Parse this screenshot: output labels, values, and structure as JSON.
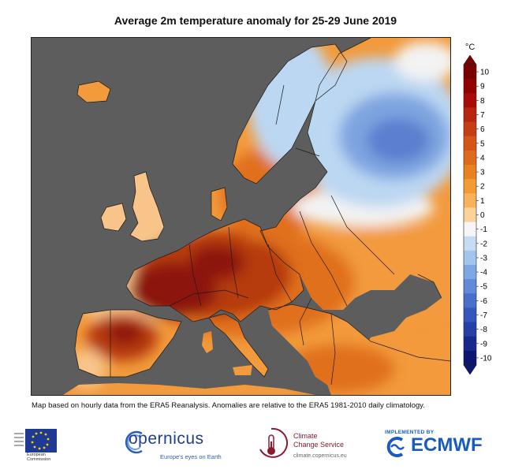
{
  "title": "Average 2m temperature anomaly for 25-29 June 2019",
  "caption": "Map based on hourly data from the ERA5 Reanalysis. Anomalies are relative to the ERA5 1981-2010 daily climatology.",
  "colorbar": {
    "unit": "°C",
    "ticks": [
      "10",
      "9",
      "8",
      "7",
      "6",
      "5",
      "4",
      "3",
      "2",
      "1",
      "0",
      "-1",
      "-2",
      "-3",
      "-4",
      "-5",
      "-6",
      "-7",
      "-8",
      "-9",
      "-10"
    ],
    "colors": [
      "#7a0000",
      "#930000",
      "#a80b08",
      "#b9260f",
      "#c63d14",
      "#d55518",
      "#e06a1c",
      "#ea8121",
      "#f39a32",
      "#f7b25a",
      "#fbd398",
      "#f6f6f6",
      "#c6dcf3",
      "#a2c5ee",
      "#7ea8e4",
      "#5f8bd8",
      "#4770cb",
      "#3656bd",
      "#2640a7",
      "#18298e",
      "#0c1670"
    ]
  },
  "map_regions": {
    "ocean": "#5d5d5d",
    "hot_core": "#8c1207",
    "hot": "#b63a10",
    "warm": "#e0701c",
    "mild": "#f29a3c",
    "light": "#f8c48a",
    "neutral": "#f3f3f3",
    "cool": "#bcd7f2",
    "cold": "#7ea4e0",
    "colder": "#5b7fcf"
  },
  "logos": {
    "eu_line1": "European",
    "eu_line2": "Commission",
    "copernicus": "opernicus",
    "copernicus_tagline": "Europe's eyes on Earth",
    "c3s_line1": "Climate",
    "c3s_line2": "Change Service",
    "c3s_url": "climate.copernicus.eu",
    "ecmwf_implemented": "IMPLEMENTED BY",
    "ecmwf": "ECMWF"
  }
}
